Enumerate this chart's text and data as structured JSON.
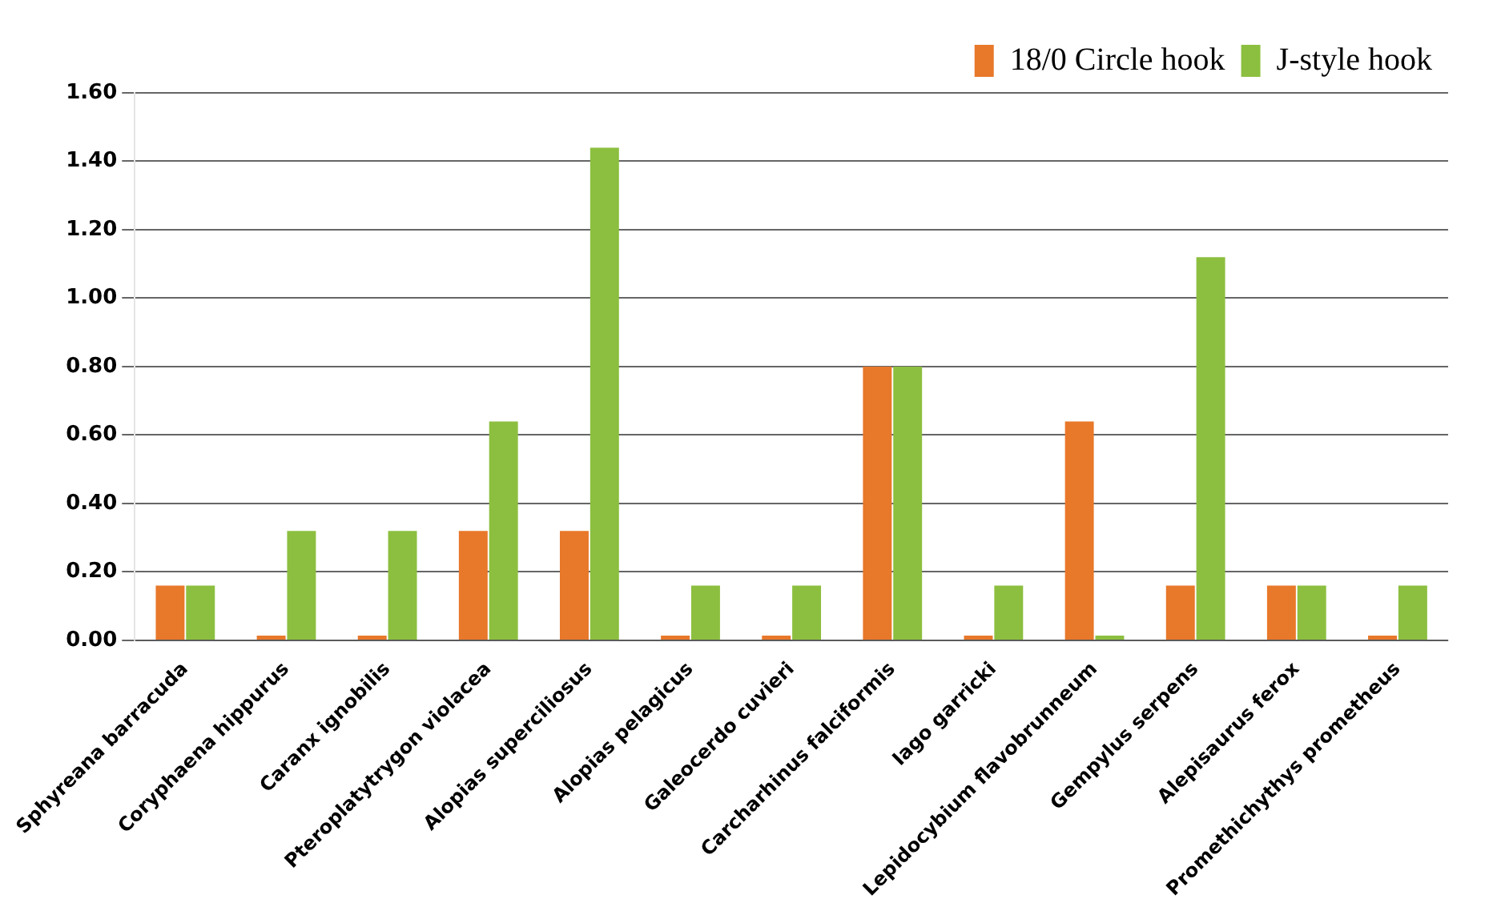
{
  "chart_data": {
    "type": "bar",
    "categories": [
      "Sphyreana barracuda",
      "Coryphaena hippurus",
      "Caranx ignobilis",
      "Pteroplatytrygon violacea",
      "Alopias superciliosus",
      "Alopias pelagicus",
      "Galeocerdo cuvieri",
      "Carcharhinus falciformis",
      "Iago garricki",
      "Lepidocybium flavobrunneum",
      "Gempylus serpens",
      "Alepisaurus ferox",
      "Promethichythys prometheus"
    ],
    "series": [
      {
        "name": "18/0 Circle hook",
        "color": "#e8782a",
        "values": [
          0.16,
          0,
          0,
          0.32,
          0.32,
          0,
          0,
          0.8,
          0,
          0.64,
          0.16,
          0.16,
          0
        ]
      },
      {
        "name": "J-style hook",
        "color": "#8cbf3f",
        "values": [
          0.16,
          0.32,
          0.32,
          0.64,
          1.44,
          0.16,
          0.16,
          0.8,
          0.16,
          0,
          1.12,
          0.16,
          0.16
        ]
      }
    ],
    "ylim": [
      0,
      1.6
    ],
    "yticks": [
      {
        "value": 0,
        "label": "0.00"
      },
      {
        "value": 0.2,
        "label": "0.20"
      },
      {
        "value": 0.4,
        "label": "0.40"
      },
      {
        "value": 0.6,
        "label": "0.60"
      },
      {
        "value": 0.8,
        "label": "0.80"
      },
      {
        "value": 1,
        "label": "1.00"
      },
      {
        "value": 1.2,
        "label": "1.20"
      },
      {
        "value": 1.4,
        "label": "1.40"
      },
      {
        "value": 1.6,
        "label": "1.60"
      }
    ],
    "grid": "y",
    "legend": "top right"
  }
}
